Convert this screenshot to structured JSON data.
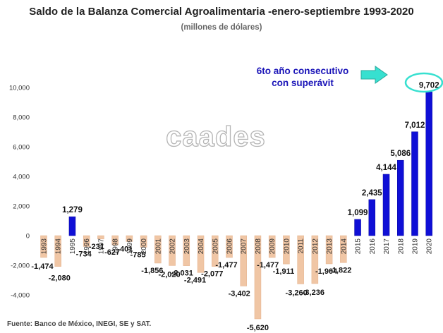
{
  "title": "Saldo de la Balanza Comercial Agroalimentaria -enero-septiembre 1993-2020",
  "subtitle": "(millones de dólares)",
  "source": "Fuente: Banco de México, INEGI, SE y SAT.",
  "watermark": "caades",
  "annotation": {
    "line1": "6to año consecutivo",
    "line2": "con superávit"
  },
  "colors": {
    "negative": "#f0c6a5",
    "positive": "#0f0fd6",
    "annotation": "#1a14b8",
    "arrow": "#37e0d0",
    "highlight_ring": "#37e0d0"
  },
  "chart_data": {
    "type": "bar",
    "categories": [
      "1993",
      "1994",
      "1995",
      "1996",
      "1997",
      "1998",
      "1999",
      "2000",
      "2001",
      "2002",
      "2003",
      "2004",
      "2005",
      "2006",
      "2007",
      "2008",
      "2009",
      "2010",
      "2011",
      "2012",
      "2013",
      "2014",
      "2015",
      "2016",
      "2017",
      "2018",
      "2019",
      "2020"
    ],
    "values": [
      -1474,
      -2080,
      1279,
      -734,
      -231,
      -627,
      -401,
      -785,
      -1856,
      -2020,
      -2031,
      -2491,
      -2077,
      -1477,
      -3402,
      -5620,
      -1477,
      -1911,
      -3260,
      -3236,
      -1904,
      -1822,
      1099,
      2435,
      4144,
      5086,
      7012,
      9702
    ],
    "labels": [
      "-1,474",
      "-2,080",
      "1,279",
      "-734",
      "-231",
      "-627",
      "-401",
      "-785",
      "-1,856",
      "-2,020",
      "-2,031",
      "-2,491",
      "-2,077",
      "-1,477",
      "-3,402",
      "-5,620",
      "-1,477",
      "-1,911",
      "-3,260",
      "-3,236",
      "-1,904",
      "-1,822",
      "1,099",
      "2,435",
      "4,144",
      "5,086",
      "7,012",
      "9,702"
    ],
    "ylim": [
      -5800,
      10000
    ],
    "yticks": [
      10000,
      8000,
      6000,
      4000,
      2000,
      0,
      -2000,
      -4000
    ],
    "ytick_labels": [
      "10,000",
      "8,000",
      "6,000",
      "4,000",
      "2,000",
      "0",
      "-2,000",
      "-4,000"
    ],
    "grid": false,
    "highlight": "2020"
  }
}
